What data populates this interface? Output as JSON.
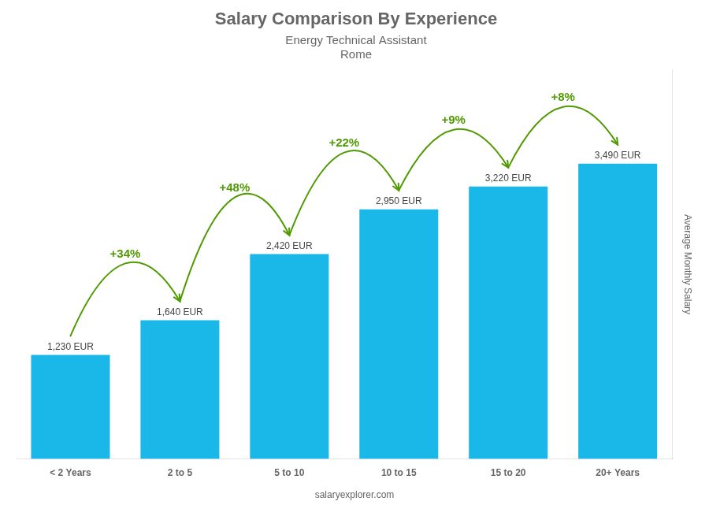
{
  "chart_data": {
    "type": "bar",
    "title": "Salary Comparison By Experience",
    "subtitle": [
      "Energy Technical Assistant",
      "Rome"
    ],
    "categories": [
      "< 2 Years",
      "2 to 5",
      "5 to 10",
      "10 to 15",
      "15 to 20",
      "20+ Years"
    ],
    "values": [
      1230,
      1640,
      2420,
      2950,
      3220,
      3490
    ],
    "value_labels": [
      "1,230 EUR",
      "1,640 EUR",
      "2,420 EUR",
      "2,950 EUR",
      "3,220 EUR",
      "3,490 EUR"
    ],
    "data_labels": true,
    "color": "#1ab8e8",
    "ylabel": "Average Monthly Salary",
    "ylim": [
      0,
      4600
    ],
    "annotations": [
      "+34%",
      "+48%",
      "+22%",
      "+9%",
      "+8%"
    ],
    "footer": "salaryexplorer.com",
    "grid": false,
    "tick_labels": "x"
  }
}
